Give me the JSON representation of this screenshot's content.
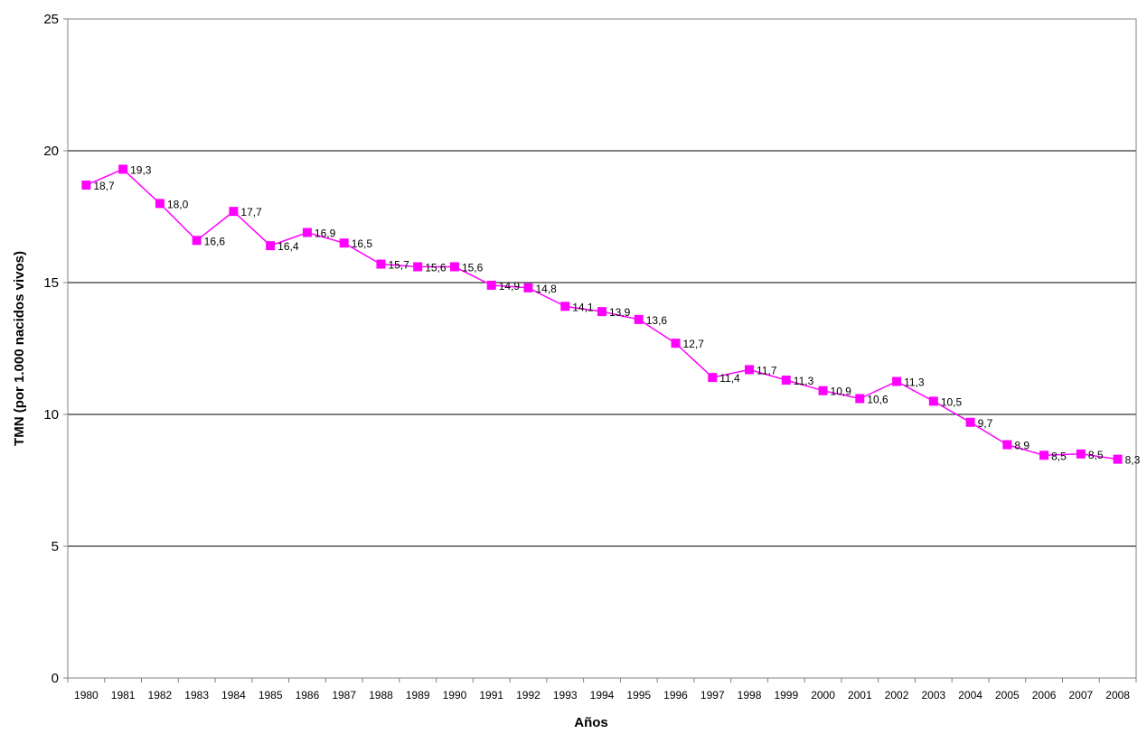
{
  "chart_data": {
    "type": "line",
    "title": "",
    "xlabel": "Años",
    "ylabel": "TMN (por 1.000 nacidos vivos)",
    "ylim": [
      0,
      25
    ],
    "yticks": [
      "0",
      "5",
      "10",
      "15",
      "20",
      "25"
    ],
    "grid": true,
    "legend": "none",
    "marker_color": "#FF00FF",
    "line_color": "#FF00FF",
    "categories": [
      "1980",
      "1981",
      "1982",
      "1983",
      "1984",
      "1985",
      "1986",
      "1987",
      "1988",
      "1989",
      "1990",
      "1991",
      "1992",
      "1993",
      "1994",
      "1995",
      "1996",
      "1997",
      "1998",
      "1999",
      "2000",
      "2001",
      "2002",
      "2003",
      "2004",
      "2005",
      "2006",
      "2007",
      "2008"
    ],
    "series": [
      {
        "values": [
          18.7,
          19.3,
          18.0,
          16.6,
          17.7,
          16.4,
          16.9,
          16.5,
          15.7,
          15.6,
          15.6,
          14.9,
          14.8,
          14.1,
          13.9,
          13.6,
          12.7,
          11.4,
          11.7,
          11.3,
          10.9,
          10.6,
          11.25,
          10.5,
          9.7,
          8.85,
          8.45,
          8.5,
          8.3
        ],
        "labels": [
          "18,7",
          "19,3",
          "18,0",
          "16,6",
          "17,7",
          "16,4",
          "16,9",
          "16,5",
          "15,7",
          "15,6",
          "15,6",
          "14,9",
          "14,8",
          "14,1",
          "13,9",
          "13,6",
          "12,7",
          "11,4",
          "11,7",
          "11,3",
          "10,9",
          "10,6",
          "11,3",
          "10,5",
          "9,7",
          "8,9",
          "8,5",
          "8,5",
          "8,3"
        ]
      }
    ]
  }
}
